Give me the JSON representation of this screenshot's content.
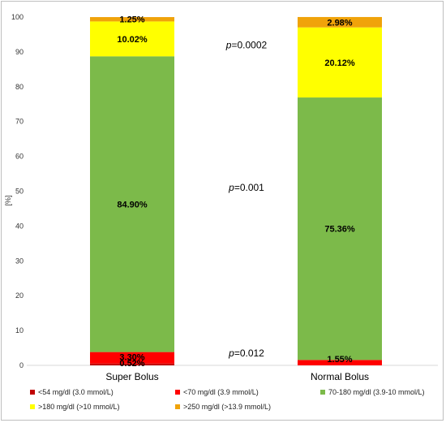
{
  "chart_data": {
    "type": "bar",
    "stacked": true,
    "categories": [
      "Super Bolus",
      "Normal Bolus"
    ],
    "ylabel": "[%]",
    "ylim": [
      0,
      100
    ],
    "yticks": [
      0,
      10,
      20,
      30,
      40,
      50,
      60,
      70,
      80,
      90,
      100
    ],
    "grid": false,
    "legend_position": "bottom",
    "series": [
      {
        "name": "<54 mg/dl (3.0 mmol/L)",
        "color": "#c00000",
        "values": [
          0.52,
          0.0
        ],
        "labels": [
          "0.52%",
          ""
        ]
      },
      {
        "name": "<70 mg/dl (3.9 mmol/L)",
        "color": "#ff0000",
        "values": [
          3.3,
          1.55
        ],
        "labels": [
          "3.30%",
          "1.55%"
        ]
      },
      {
        "name": "70-180 mg/dl (3.9-10 mmol/L)",
        "color": "#7cba4a",
        "values": [
          84.9,
          75.36
        ],
        "labels": [
          "84.90%",
          "75.36%"
        ]
      },
      {
        "name": ">180 mg/dl  (>10 mmol/L)",
        "color": "#ffff00",
        "values": [
          10.02,
          20.12
        ],
        "labels": [
          "10.02%",
          "20.12%"
        ]
      },
      {
        "name": ">250 mg/dl (>13.9 mmol/L)",
        "color": "#f0a30a",
        "values": [
          1.25,
          2.98
        ],
        "labels": [
          "1.25%",
          "2.98%"
        ]
      }
    ],
    "annotations": [
      {
        "prefix": "p",
        "text": "=0.0002",
        "y": 92
      },
      {
        "prefix": "p",
        "text": "=0.001",
        "y": 51
      },
      {
        "prefix": "p",
        "text": "=0.012",
        "y": 3.5
      }
    ]
  }
}
